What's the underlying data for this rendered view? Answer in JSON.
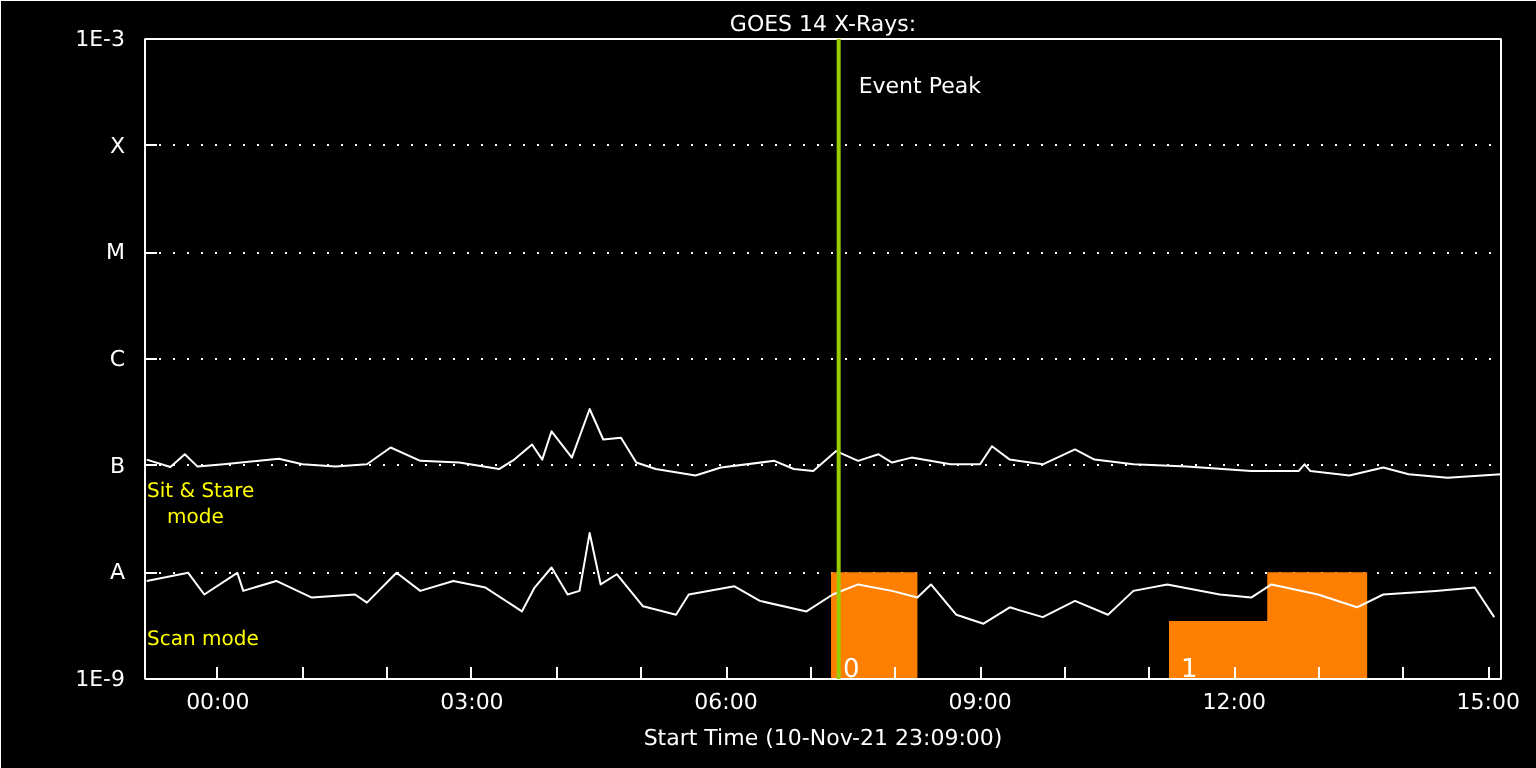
{
  "chart_data": {
    "type": "line",
    "title": "GOES 14 X-Rays:",
    "xlabel": "Start Time (10-Nov-21 23:09:00)",
    "log": "y",
    "grid": "y",
    "xlim": [
      -0.86,
      15.15
    ],
    "ylim": [
      1e-09,
      0.001
    ],
    "xticks": [
      {
        "value": 0,
        "label": "00:00"
      },
      {
        "value": 1,
        "label": null
      },
      {
        "value": 2,
        "label": null
      },
      {
        "value": 3,
        "label": "03:00"
      },
      {
        "value": 4,
        "label": null
      },
      {
        "value": 5,
        "label": null
      },
      {
        "value": 6,
        "label": "06:00"
      },
      {
        "value": 7,
        "label": null
      },
      {
        "value": 8,
        "label": null
      },
      {
        "value": 9,
        "label": "09:00"
      },
      {
        "value": 10,
        "label": null
      },
      {
        "value": 11,
        "label": null
      },
      {
        "value": 12,
        "label": "12:00"
      },
      {
        "value": 13,
        "label": null
      },
      {
        "value": 14,
        "label": null
      },
      {
        "value": 15,
        "label": "15:00"
      }
    ],
    "yticks": [
      {
        "value": 1e-09,
        "label": "1E-9"
      },
      {
        "value": 1e-08,
        "label": "A"
      },
      {
        "value": 1e-07,
        "label": "B"
      },
      {
        "value": 1e-06,
        "label": "C"
      },
      {
        "value": 1e-05,
        "label": "M"
      },
      {
        "value": 0.0001,
        "label": "X"
      },
      {
        "value": 0.001,
        "label": "1E-3"
      }
    ],
    "ref_lines": [
      {
        "axis": "x",
        "value": 7.33,
        "label": "Event Peak",
        "color": "#99cc00"
      }
    ],
    "annotations": [
      "Sit & Stare mode",
      "Scan mode"
    ],
    "series": [
      {
        "type": "area",
        "name": "0",
        "color": "#ff8000",
        "x": [
          7.24,
          7.24,
          8.26,
          8.26
        ],
        "values": [
          1e-09,
          1e-08,
          1e-08,
          1e-09
        ]
      },
      {
        "type": "area",
        "name": "1",
        "color": "#ff8000",
        "x": [
          11.23,
          11.23,
          12.39,
          12.39,
          13.57,
          13.57
        ],
        "values": [
          1e-09,
          3.5e-09,
          3.5e-09,
          1e-08,
          1e-08,
          1e-09
        ]
      },
      {
        "color": "#ffffff",
        "x": [
          -0.84,
          -0.56,
          -0.39,
          -0.24,
          0.07,
          0.72,
          1.0,
          1.39,
          1.76,
          2.04,
          2.39,
          2.85,
          3.32,
          3.5,
          3.71,
          3.83,
          3.94,
          4.18,
          4.39,
          4.55,
          4.76,
          4.94,
          5.17,
          5.64,
          5.94,
          6.57,
          6.8,
          7.03,
          7.3,
          7.56,
          7.8,
          7.96,
          8.19,
          8.65,
          9.0,
          9.14,
          9.35,
          9.74,
          10.12,
          10.35,
          10.81,
          11.44,
          12.2,
          12.76,
          12.83,
          12.9,
          13.36,
          13.76,
          14.06,
          14.52,
          15.15
        ],
        "values": [
          1.14e-07,
          9.7e-08,
          1.28e-07,
          9.8e-08,
          1.03e-07,
          1.16e-07,
          1.03e-07,
          9.8e-08,
          1.03e-07,
          1.48e-07,
          1.11e-07,
          1.07e-07,
          9.3e-08,
          1.14e-07,
          1.58e-07,
          1.14e-07,
          2.1e-07,
          1.19e-07,
          3.4e-07,
          1.76e-07,
          1.83e-07,
          1.07e-07,
          9.3e-08,
          8.1e-08,
          9.6e-08,
          1.11e-07,
          9.3e-08,
          8.9e-08,
          1.37e-07,
          1.11e-07,
          1.28e-07,
          1.07e-07,
          1.19e-07,
          1.03e-07,
          1.03e-07,
          1.52e-07,
          1.14e-07,
          1.03e-07,
          1.42e-07,
          1.14e-07,
          1.03e-07,
          9.8e-08,
          8.9e-08,
          8.9e-08,
          1.03e-07,
          8.9e-08,
          8.1e-08,
          9.6e-08,
          8.3e-08,
          7.7e-08,
          8.3e-08
        ]
      },
      {
        "color": "#ffffff",
        "x": [
          -0.84,
          -0.35,
          -0.16,
          0.23,
          0.3,
          0.69,
          1.11,
          1.62,
          1.76,
          2.11,
          2.39,
          2.78,
          3.16,
          3.59,
          3.74,
          3.94,
          4.13,
          4.27,
          4.39,
          4.52,
          4.71,
          5.02,
          5.41,
          5.56,
          6.1,
          6.4,
          6.95,
          7.26,
          7.56,
          7.96,
          8.26,
          8.42,
          8.72,
          9.04,
          9.35,
          9.74,
          10.12,
          10.51,
          10.81,
          11.21,
          11.83,
          12.2,
          12.44,
          12.99,
          13.45,
          13.76,
          14.38,
          14.84,
          15.07
        ],
        "values": [
          8.3e-09,
          9.9e-09,
          6.2e-09,
          9.9e-09,
          6.7e-09,
          8.3e-09,
          5.8e-09,
          6.2e-09,
          5.2e-09,
          9.9e-09,
          6.7e-09,
          8.3e-09,
          7.2e-09,
          4.3e-09,
          7.2e-09,
          1.11e-08,
          6.2e-09,
          6.7e-09,
          2.34e-08,
          7.7e-09,
          9.6e-09,
          4.8e-09,
          4e-09,
          6.2e-09,
          7.4e-09,
          5.4e-09,
          4.3e-09,
          6.2e-09,
          7.7e-09,
          6.7e-09,
          5.8e-09,
          7.7e-09,
          4e-09,
          3.3e-09,
          4.7e-09,
          3.8e-09,
          5.4e-09,
          4e-09,
          6.7e-09,
          7.7e-09,
          6.2e-09,
          5.8e-09,
          7.7e-09,
          6.2e-09,
          4.7e-09,
          6.2e-09,
          6.7e-09,
          7.2e-09,
          3.8e-09
        ]
      }
    ]
  }
}
